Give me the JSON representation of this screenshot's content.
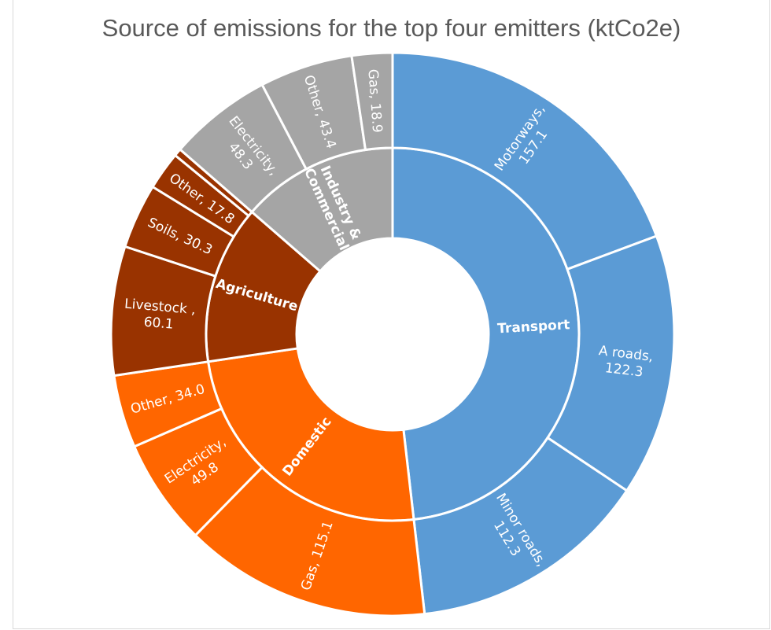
{
  "chart_data": {
    "type": "sunburst",
    "title": "Source of emissions for the top four emitters (ktCo2e)",
    "categories": [
      {
        "name": "Transport",
        "label_lines": [
          "Transport"
        ],
        "color": "#5b9bd5",
        "children": [
          {
            "name": "Motorways",
            "value": 157.1,
            "label_lines": [
              "Motorways,",
              "157.1"
            ]
          },
          {
            "name": "A roads",
            "value": 122.3,
            "label_lines": [
              "A roads,",
              "122.3"
            ]
          },
          {
            "name": "Minor roads",
            "value": 112.3,
            "label_lines": [
              "Minor roads,",
              "112.3"
            ]
          }
        ]
      },
      {
        "name": "Domestic",
        "label_lines": [
          "Domestic"
        ],
        "color": "#ff6600",
        "children": [
          {
            "name": "Gas",
            "value": 115.1,
            "label_lines": [
              "Gas, 115.1"
            ]
          },
          {
            "name": "Electricity",
            "value": 49.8,
            "label_lines": [
              "Electricity,",
              "49.8"
            ]
          },
          {
            "name": "Other",
            "value": 34.0,
            "label_lines": [
              "Other, 34.0"
            ]
          }
        ]
      },
      {
        "name": "Agriculture",
        "label_lines": [
          "Agriculture"
        ],
        "color": "#993300",
        "children": [
          {
            "name": "Livestock",
            "value": 60.1,
            "label_lines": [
              "Livestock ,",
              "60.1"
            ]
          },
          {
            "name": "Soils",
            "value": 30.3,
            "label_lines": [
              "Soils, 30.3"
            ]
          },
          {
            "name": "Other",
            "value": 17.8,
            "label_lines": [
              "Other, 17.8"
            ]
          },
          {
            "name": "",
            "value": 3.5,
            "label_lines": []
          }
        ]
      },
      {
        "name": "Industry & Commercial",
        "label_lines": [
          "Industry &",
          "Commercial"
        ],
        "color": "#a5a5a5",
        "children": [
          {
            "name": "Electricity",
            "value": 48.3,
            "label_lines": [
              "Electricity,",
              "48.3"
            ]
          },
          {
            "name": "Other",
            "value": 43.4,
            "label_lines": [
              "Other, 43.4"
            ]
          },
          {
            "name": "Gas",
            "value": 18.9,
            "label_lines": [
              "Gas, 18.9"
            ]
          }
        ]
      }
    ]
  }
}
